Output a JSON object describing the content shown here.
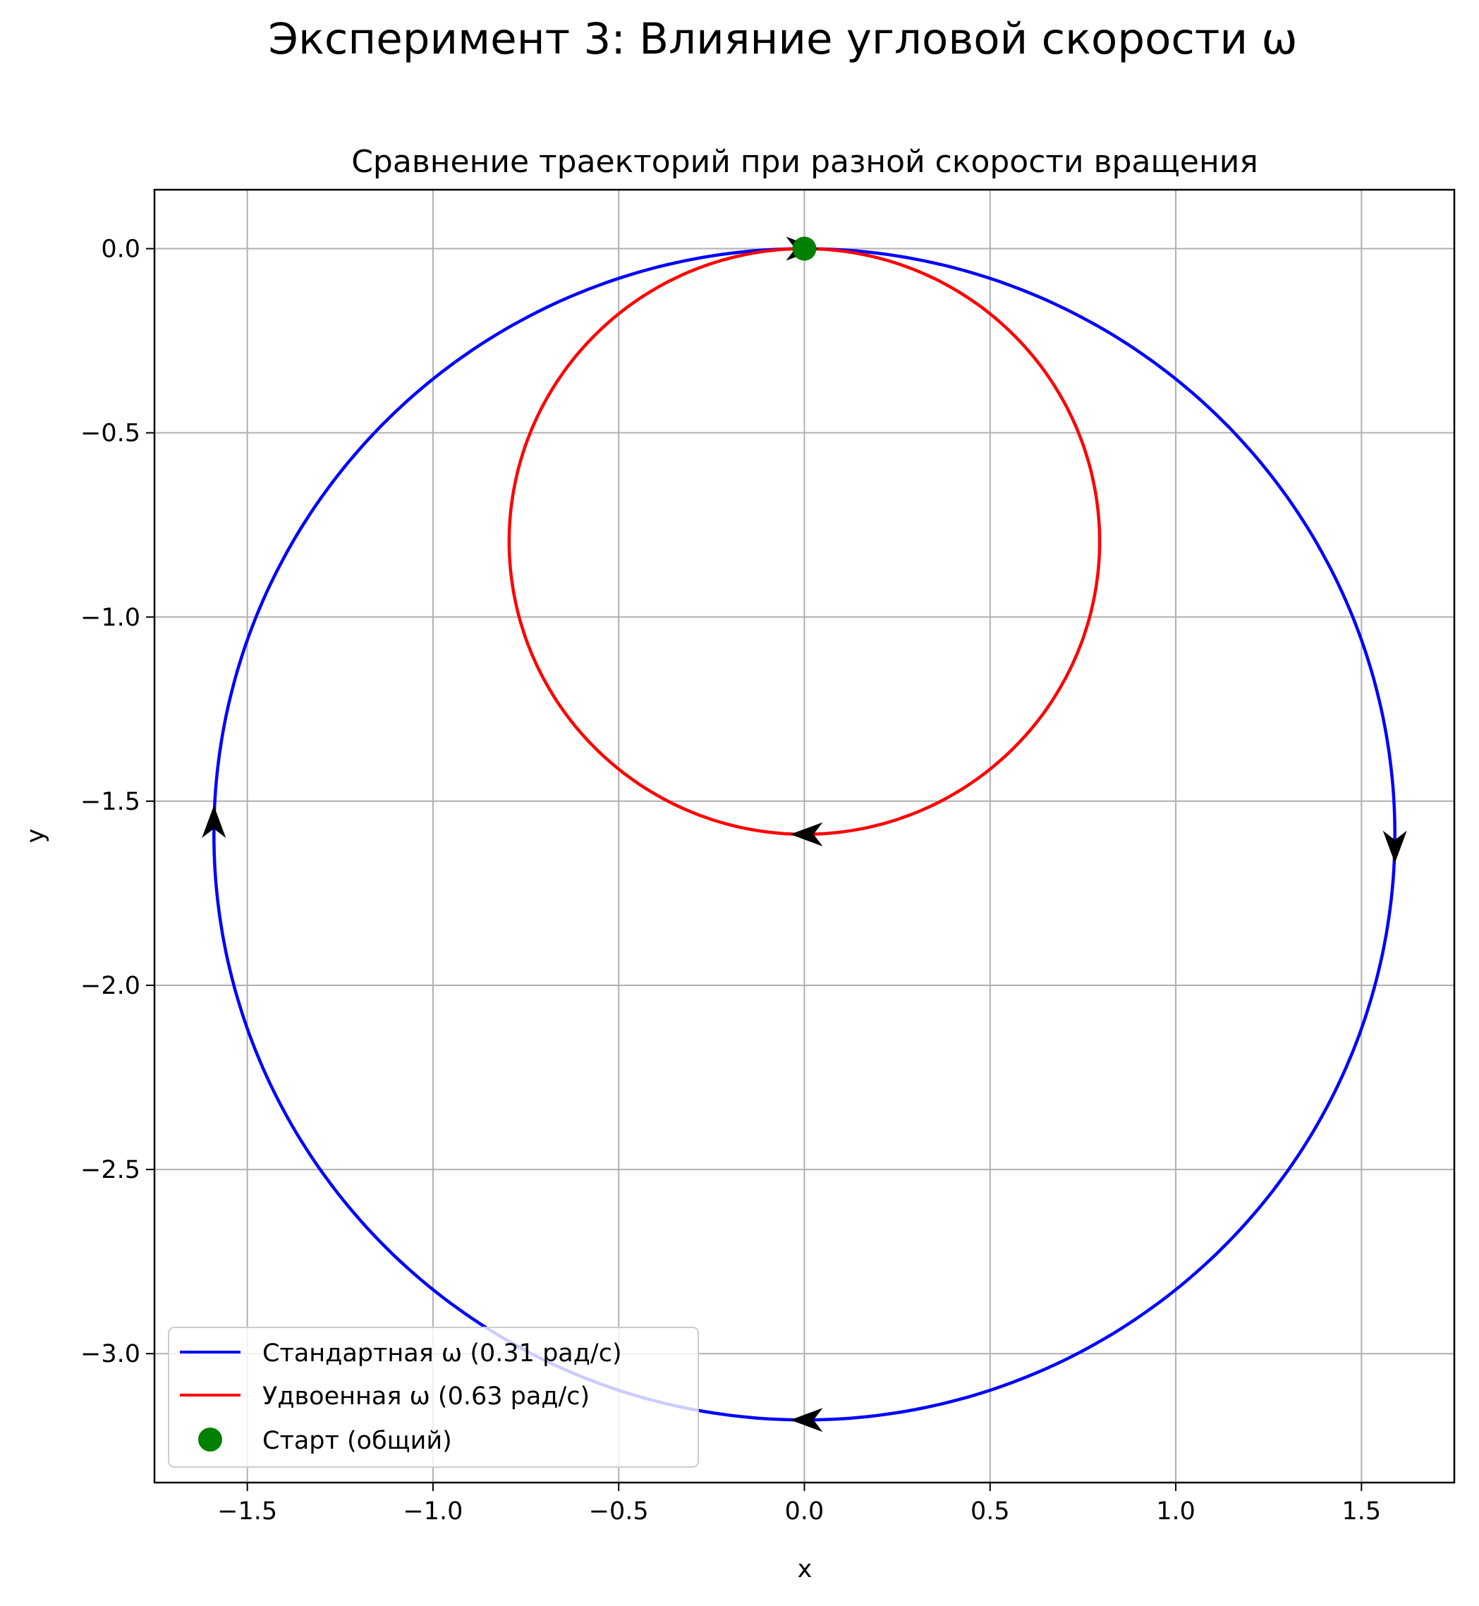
{
  "figure": {
    "suptitle": "Эксперимент 3: Влияние угловой скорости ω"
  },
  "chart_data": {
    "type": "line",
    "title": "Сравнение траекторий при разной скорости вращения",
    "xlabel": "x",
    "ylabel": "y",
    "xlim": [
      -1.75,
      1.75
    ],
    "ylim": [
      -3.35,
      0.16
    ],
    "xticks": [
      -1.5,
      -1.0,
      -0.5,
      0.0,
      0.5,
      1.0,
      1.5
    ],
    "yticks": [
      0.0,
      -0.5,
      -1.0,
      -1.5,
      -2.0,
      -2.5,
      -3.0
    ],
    "xtick_labels": [
      "−1.5",
      "−1.0",
      "−0.5",
      "0.0",
      "0.5",
      "1.0",
      "1.5"
    ],
    "ytick_labels": [
      "0.0",
      "−0.5",
      "−1.0",
      "−1.5",
      "−2.0",
      "−2.5",
      "−3.0"
    ],
    "grid": true,
    "legend_position": "lower-left",
    "series": [
      {
        "name": "Стандартная ω (0.31 рад/с)",
        "color": "#0000ff",
        "kind": "circle",
        "center": [
          0.0,
          -1.59
        ],
        "radius": 1.59,
        "direction_arrows": [
          {
            "x": 0.0,
            "y": -3.18,
            "direction": "left"
          },
          {
            "x": -1.59,
            "y": -1.55,
            "direction": "up"
          },
          {
            "x": 1.59,
            "y": -1.63,
            "direction": "down"
          }
        ]
      },
      {
        "name": "Удвоенная ω (0.63 рад/с)",
        "color": "#ff0000",
        "kind": "circle",
        "center": [
          0.0,
          -0.795
        ],
        "radius": 0.795,
        "direction_arrows": [
          {
            "x": 0.0,
            "y": 0.0,
            "direction": "right"
          },
          {
            "x": 0.0,
            "y": -1.59,
            "direction": "left"
          }
        ]
      }
    ],
    "markers": [
      {
        "name": "Старт (общий)",
        "x": 0.0,
        "y": 0.0,
        "color": "#008000"
      }
    ]
  }
}
